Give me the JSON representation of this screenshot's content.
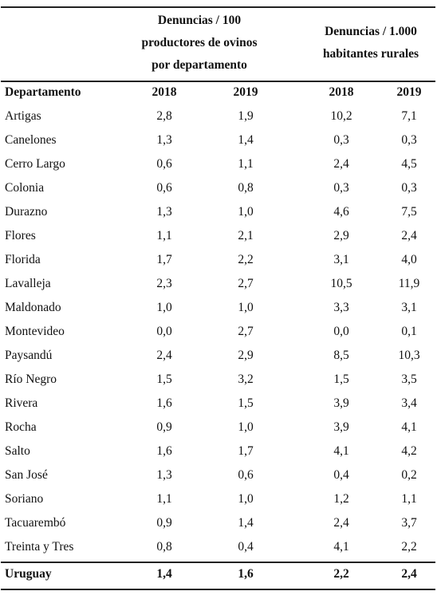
{
  "header": {
    "group1": [
      "Denuncias / 100",
      "productores de ovinos",
      "por departamento"
    ],
    "group2": [
      "Denuncias / 1.000",
      "habitantes rurales"
    ],
    "col_dept": "Departamento",
    "col_2018a": "2018",
    "col_2019a": "2019",
    "col_2018b": "2018",
    "col_2019b": "2019"
  },
  "rows": [
    {
      "dept": "Artigas",
      "v": [
        "2,8",
        "1,9",
        "10,2",
        "7,1"
      ]
    },
    {
      "dept": "Canelones",
      "v": [
        "1,3",
        "1,4",
        "0,3",
        "0,3"
      ]
    },
    {
      "dept": "Cerro Largo",
      "v": [
        "0,6",
        "1,1",
        "2,4",
        "4,5"
      ]
    },
    {
      "dept": "Colonia",
      "v": [
        "0,6",
        "0,8",
        "0,3",
        "0,3"
      ]
    },
    {
      "dept": "Durazno",
      "v": [
        "1,3",
        "1,0",
        "4,6",
        "7,5"
      ]
    },
    {
      "dept": "Flores",
      "v": [
        "1,1",
        "2,1",
        "2,9",
        "2,4"
      ]
    },
    {
      "dept": "Florida",
      "v": [
        "1,7",
        "2,2",
        "3,1",
        "4,0"
      ]
    },
    {
      "dept": "Lavalleja",
      "v": [
        "2,3",
        "2,7",
        "10,5",
        "11,9"
      ]
    },
    {
      "dept": "Maldonado",
      "v": [
        "1,0",
        "1,0",
        "3,3",
        "3,1"
      ]
    },
    {
      "dept": "Montevideo",
      "v": [
        "0,0",
        "2,7",
        "0,0",
        "0,1"
      ]
    },
    {
      "dept": "Paysandú",
      "v": [
        "2,4",
        "2,9",
        "8,5",
        "10,3"
      ]
    },
    {
      "dept": "Río Negro",
      "v": [
        "1,5",
        "3,2",
        "1,5",
        "3,5"
      ]
    },
    {
      "dept": "Rivera",
      "v": [
        "1,6",
        "1,5",
        "3,9",
        "3,4"
      ]
    },
    {
      "dept": "Rocha",
      "v": [
        "0,9",
        "1,0",
        "3,9",
        "4,1"
      ]
    },
    {
      "dept": "Salto",
      "v": [
        "1,6",
        "1,7",
        "4,1",
        "4,2"
      ]
    },
    {
      "dept": "San José",
      "v": [
        "1,3",
        "0,6",
        "0,4",
        "0,2"
      ]
    },
    {
      "dept": "Soriano",
      "v": [
        "1,1",
        "1,0",
        "1,2",
        "1,1"
      ]
    },
    {
      "dept": "Tacuarembó",
      "v": [
        "0,9",
        "1,4",
        "2,4",
        "3,7"
      ]
    },
    {
      "dept": "Treinta y Tres",
      "v": [
        "0,8",
        "0,4",
        "4,1",
        "2,2"
      ]
    }
  ],
  "total": {
    "dept": "Uruguay",
    "v": [
      "1,4",
      "1,6",
      "2,2",
      "2,4"
    ]
  }
}
